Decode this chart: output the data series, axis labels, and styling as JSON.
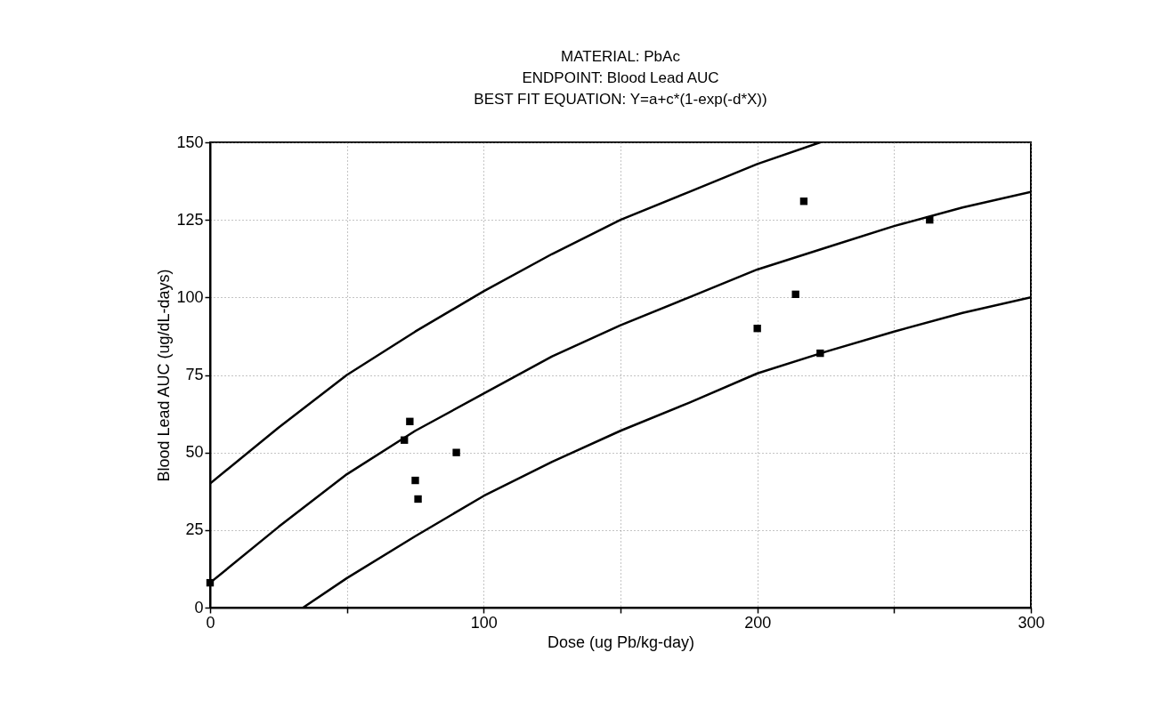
{
  "chart_data": {
    "type": "scatter",
    "title": [
      "MATERIAL:  PbAc",
      "ENDPOINT:  Blood Lead AUC",
      "BEST FIT EQUATION:  Y=a+c*(1-exp(-d*X))"
    ],
    "xlabel": "Dose (ug Pb/kg-day)",
    "ylabel": "Blood Lead AUC (ug/dL-days)",
    "series": [
      {
        "color": "#000000",
        "marker": "square",
        "x": [
          0,
          71,
          73,
          75,
          76,
          90,
          200,
          214,
          217,
          223,
          263
        ],
        "values": [
          8,
          54,
          60,
          41,
          35,
          50,
          90,
          101,
          131,
          82,
          125
        ]
      },
      {
        "type": "line",
        "color": "#000000",
        "line_style": "solid",
        "x": [
          0,
          25,
          50,
          75,
          100,
          125,
          150,
          175,
          200,
          223
        ],
        "values": [
          40,
          58,
          75,
          89,
          102,
          114,
          125,
          134,
          143,
          150
        ]
      },
      {
        "type": "line",
        "color": "#000000",
        "line_style": "solid",
        "x": [
          0,
          25,
          50,
          75,
          100,
          125,
          150,
          175,
          200,
          225,
          250,
          275,
          300
        ],
        "values": [
          8,
          26,
          43,
          57,
          69,
          81,
          91,
          100,
          109,
          116,
          123,
          129,
          134
        ]
      },
      {
        "type": "line",
        "color": "#000000",
        "line_style": "solid",
        "x": [
          34,
          50,
          75,
          100,
          125,
          150,
          175,
          200,
          225,
          250,
          275,
          300
        ],
        "values": [
          0,
          9.5,
          23,
          36,
          47,
          57,
          66,
          75.5,
          82.5,
          89,
          95,
          100
        ]
      }
    ],
    "xlim": [
      0,
      300
    ],
    "xticks": [
      0,
      {
        "value": 50,
        "label": null
      },
      100,
      {
        "value": 150,
        "label": null
      },
      200,
      {
        "value": 250,
        "label": null
      },
      300
    ],
    "ylim": [
      0,
      150
    ],
    "yticks": [
      0,
      25,
      50,
      75,
      100,
      125,
      150
    ],
    "grid": true
  }
}
